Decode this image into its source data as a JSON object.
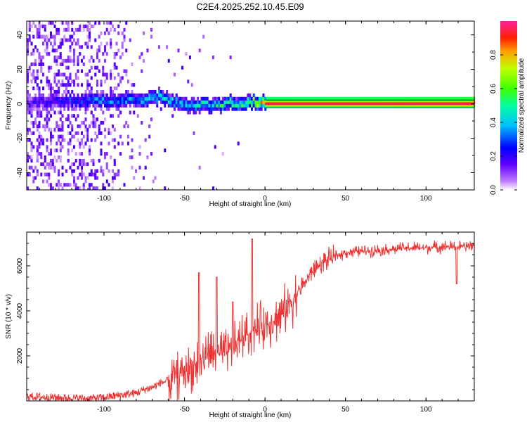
{
  "figure_title": "C2E4.2025.252.10.45.E09",
  "colors": {
    "snr_line": "#ee3333",
    "frame": "#000000",
    "grid_line": "#000000",
    "background": "#ffffff"
  },
  "chart_data": [
    {
      "type": "heatmap",
      "title": "C2E4.2025.252.10.45.E09",
      "xlabel": "Height of straight line (km)",
      "ylabel": "Frequency (Hz)",
      "xlim": [
        -148,
        130
      ],
      "ylim": [
        -50,
        48
      ],
      "xticks": [
        -100,
        -50,
        0,
        50,
        100
      ],
      "xtick_labels": [
        "-100",
        "-50",
        "0",
        "50",
        "100"
      ],
      "yticks": [
        -40,
        -20,
        0,
        20,
        40
      ],
      "ytick_labels": [
        "-40",
        "-20",
        "0",
        "20",
        "40"
      ],
      "colorbar": {
        "label": "Normalized spectral amplitude",
        "range": [
          0,
          1
        ],
        "ticks": [
          0.0,
          0.2,
          0.4,
          0.6,
          0.8
        ],
        "tick_labels": [
          "0.0",
          "0.2",
          "0.4",
          "0.6",
          "0.8"
        ],
        "colormap": "rainbow"
      },
      "description_points": [
        {
          "x": -148,
          "peak_freq": 0,
          "amplitude": 0.2,
          "noise": 0.4
        },
        {
          "x": -100,
          "peak_freq": 1,
          "amplitude": 0.4,
          "noise": 0.25
        },
        {
          "x": -80,
          "peak_freq": 1,
          "amplitude": 0.45,
          "noise": 0.05
        },
        {
          "x": -65,
          "peak_freq": 3,
          "amplitude": 0.55,
          "noise": 0.02
        },
        {
          "x": -50,
          "peak_freq": -2,
          "amplitude": 0.5,
          "noise": 0.01
        },
        {
          "x": -30,
          "peak_freq": -1,
          "amplitude": 0.55,
          "noise": 0.01
        },
        {
          "x": -10,
          "peak_freq": 0,
          "amplitude": 0.7,
          "noise": 0.0
        },
        {
          "x": 0,
          "peak_freq": 0,
          "amplitude": 0.9,
          "noise": 0.0
        },
        {
          "x": 130,
          "peak_freq": 0,
          "amplitude": 0.95,
          "noise": 0.0
        }
      ]
    },
    {
      "type": "line",
      "xlabel": "Height of straight line (km)",
      "ylabel": "SNR (10 * v/v)",
      "xlim": [
        -148,
        130
      ],
      "ylim": [
        0,
        7500
      ],
      "xticks": [
        -100,
        -50,
        0,
        50,
        100
      ],
      "xtick_labels": [
        "-100",
        "-50",
        "0",
        "50",
        "100"
      ],
      "yticks": [
        2000,
        4000,
        6000
      ],
      "ytick_labels": [
        "2000",
        "4000",
        "6000"
      ],
      "series": [
        {
          "name": "SNR",
          "x": [
            -148,
            -130,
            -110,
            -100,
            -90,
            -80,
            -75,
            -70,
            -65,
            -60,
            -55,
            -50,
            -45,
            -40,
            -35,
            -30,
            -25,
            -20,
            -15,
            -10,
            -5,
            0,
            5,
            10,
            15,
            20,
            25,
            30,
            35,
            40,
            45,
            50,
            60,
            70,
            80,
            90,
            100,
            110,
            120,
            130
          ],
          "values": [
            200,
            150,
            100,
            150,
            250,
            350,
            500,
            600,
            800,
            900,
            1100,
            1300,
            1500,
            1800,
            2100,
            2000,
            2100,
            2300,
            2800,
            3000,
            3200,
            3400,
            3600,
            3800,
            4300,
            4800,
            5300,
            5800,
            6100,
            6300,
            6450,
            6600,
            6650,
            6700,
            6750,
            6800,
            6800,
            6850,
            6850,
            6900
          ]
        }
      ],
      "spikes": [
        {
          "x": -41,
          "value": 5700
        },
        {
          "x": -30,
          "value": 5500
        },
        {
          "x": -20,
          "value": 4400
        },
        {
          "x": -8,
          "value": 7200
        },
        {
          "x": 119,
          "value": 5200
        }
      ]
    }
  ]
}
